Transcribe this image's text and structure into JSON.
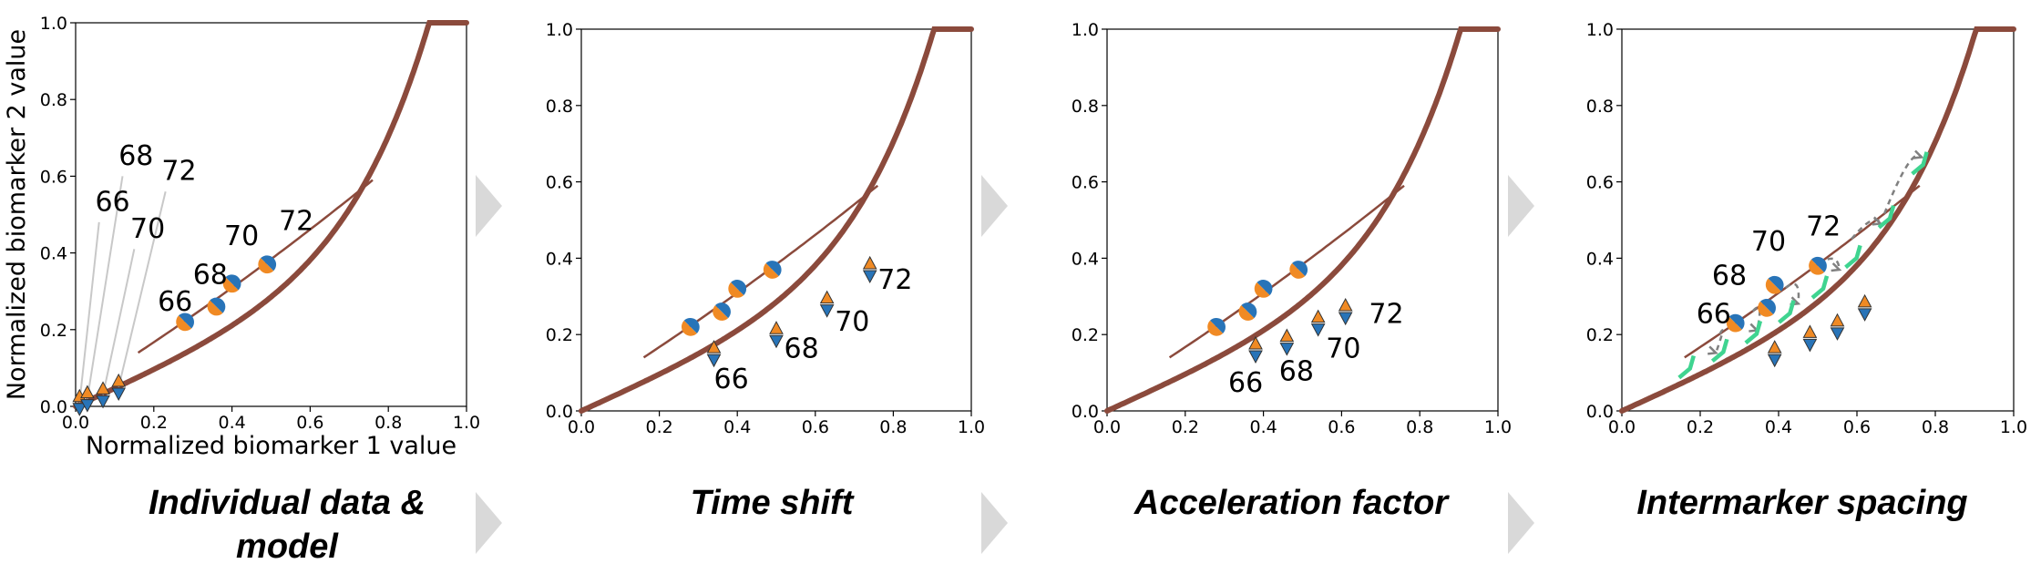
{
  "chart_data": [
    {
      "type": "scatter",
      "caption": "Individual data & model",
      "xlabel": "Normalized biomarker 1 value",
      "ylabel": "Normalized biomarker 2 value",
      "xlim": [
        0,
        1
      ],
      "ylim": [
        0,
        1
      ],
      "xticks": [
        "0.0",
        "0.2",
        "0.4",
        "0.6",
        "0.8",
        "1.0"
      ],
      "yticks": [
        "0.0",
        "0.2",
        "0.4",
        "0.6",
        "0.8",
        "1.0"
      ],
      "population_curve": "thick brown model curve from (0,0) to (1,1)",
      "individual_curve": {
        "x": [
          0.16,
          0.76
        ],
        "y": [
          0.14,
          0.59
        ]
      },
      "circles": {
        "ages": [
          "66",
          "68",
          "70",
          "72"
        ],
        "x": [
          0.28,
          0.36,
          0.4,
          0.49
        ],
        "y": [
          0.22,
          0.26,
          0.32,
          0.37
        ]
      },
      "triangles": {
        "ages": [
          "66",
          "68",
          "70",
          "72"
        ],
        "x": [
          0.01,
          0.03,
          0.07,
          0.11
        ],
        "y": [
          0.01,
          0.02,
          0.03,
          0.05
        ]
      },
      "circle_labels": [
        {
          "text": "66",
          "x": 0.21,
          "y": 0.25
        },
        {
          "text": "68",
          "x": 0.3,
          "y": 0.32
        },
        {
          "text": "70",
          "x": 0.38,
          "y": 0.42
        },
        {
          "text": "72",
          "x": 0.52,
          "y": 0.46
        }
      ],
      "triangle_labels": [
        {
          "text": "66",
          "x": 0.05,
          "y": 0.51
        },
        {
          "text": "68",
          "x": 0.11,
          "y": 0.63
        },
        {
          "text": "70",
          "x": 0.14,
          "y": 0.44
        },
        {
          "text": "72",
          "x": 0.22,
          "y": 0.59
        }
      ],
      "leader_lines": true,
      "green_segments": false,
      "dashed_arcs": false
    },
    {
      "type": "scatter",
      "caption": "Time shift",
      "xlabel": "",
      "ylabel": "",
      "xlim": [
        0,
        1
      ],
      "ylim": [
        0,
        1
      ],
      "xticks": [
        "0.0",
        "0.2",
        "0.4",
        "0.6",
        "0.8",
        "1.0"
      ],
      "yticks": [
        "0.0",
        "0.2",
        "0.4",
        "0.6",
        "0.8",
        "1.0"
      ],
      "population_curve": "thick brown model curve from (0,0) to (1,1)",
      "individual_curve": {
        "x": [
          0.16,
          0.76
        ],
        "y": [
          0.14,
          0.59
        ]
      },
      "circles": {
        "ages": [
          "66",
          "68",
          "70",
          "72"
        ],
        "x": [
          0.28,
          0.36,
          0.4,
          0.49
        ],
        "y": [
          0.22,
          0.26,
          0.32,
          0.37
        ]
      },
      "triangles": {
        "ages": [
          "66",
          "68",
          "70",
          "72"
        ],
        "x": [
          0.34,
          0.5,
          0.63,
          0.74
        ],
        "y": [
          0.15,
          0.2,
          0.28,
          0.37
        ]
      },
      "circle_labels": [],
      "triangle_labels": [
        {
          "text": "66",
          "x": 0.34,
          "y": 0.06
        },
        {
          "text": "68",
          "x": 0.52,
          "y": 0.14
        },
        {
          "text": "70",
          "x": 0.65,
          "y": 0.21
        },
        {
          "text": "72",
          "x": 0.76,
          "y": 0.32
        }
      ],
      "leader_lines": false,
      "green_segments": false,
      "dashed_arcs": false
    },
    {
      "type": "scatter",
      "caption": "Acceleration factor",
      "xlabel": "",
      "ylabel": "",
      "xlim": [
        0,
        1
      ],
      "ylim": [
        0,
        1
      ],
      "xticks": [
        "0.0",
        "0.2",
        "0.4",
        "0.6",
        "0.8",
        "1.0"
      ],
      "yticks": [
        "0.0",
        "0.2",
        "0.4",
        "0.6",
        "0.8",
        "1.0"
      ],
      "population_curve": "thick brown model curve from (0,0) to (1,1)",
      "individual_curve": {
        "x": [
          0.16,
          0.76
        ],
        "y": [
          0.14,
          0.59
        ]
      },
      "circles": {
        "ages": [
          "66",
          "68",
          "70",
          "72"
        ],
        "x": [
          0.28,
          0.36,
          0.4,
          0.49
        ],
        "y": [
          0.22,
          0.26,
          0.32,
          0.37
        ]
      },
      "triangles": {
        "ages": [
          "66",
          "68",
          "70",
          "72"
        ],
        "x": [
          0.38,
          0.46,
          0.54,
          0.61
        ],
        "y": [
          0.16,
          0.18,
          0.23,
          0.26
        ]
      },
      "circle_labels": [],
      "triangle_labels": [
        {
          "text": "66",
          "x": 0.31,
          "y": 0.05
        },
        {
          "text": "68",
          "x": 0.44,
          "y": 0.08
        },
        {
          "text": "70",
          "x": 0.56,
          "y": 0.14
        },
        {
          "text": "72",
          "x": 0.67,
          "y": 0.23
        }
      ],
      "leader_lines": false,
      "green_segments": false,
      "dashed_arcs": false
    },
    {
      "type": "scatter",
      "caption": "Intermarker spacing",
      "xlabel": "",
      "ylabel": "",
      "xlim": [
        0,
        1
      ],
      "ylim": [
        0,
        1
      ],
      "xticks": [
        "0.0",
        "0.2",
        "0.4",
        "0.6",
        "0.8",
        "1.0"
      ],
      "yticks": [
        "0.0",
        "0.2",
        "0.4",
        "0.6",
        "0.8",
        "1.0"
      ],
      "population_curve": "thick brown model curve from (0,0) to (1,1)",
      "individual_curve": {
        "x": [
          0.16,
          0.76
        ],
        "y": [
          0.14,
          0.59
        ]
      },
      "circles": {
        "ages": [
          "66",
          "68",
          "70",
          "72"
        ],
        "x": [
          0.29,
          0.37,
          0.39,
          0.5
        ],
        "y": [
          0.23,
          0.27,
          0.33,
          0.38
        ]
      },
      "triangles": {
        "ages": [
          "66",
          "68",
          "70",
          "72"
        ],
        "x": [
          0.39,
          0.48,
          0.55,
          0.62
        ],
        "y": [
          0.15,
          0.19,
          0.22,
          0.27
        ]
      },
      "circle_labels": [
        {
          "text": "66",
          "x": 0.19,
          "y": 0.23
        },
        {
          "text": "68",
          "x": 0.23,
          "y": 0.33
        },
        {
          "text": "70",
          "x": 0.33,
          "y": 0.42
        },
        {
          "text": "72",
          "x": 0.47,
          "y": 0.46
        }
      ],
      "triangle_labels": [],
      "leader_lines": false,
      "green_segments": true,
      "dashed_arcs": true
    }
  ],
  "colors": {
    "curve": "#8b4a3c",
    "orange": "#f08a24",
    "blue": "#2874b8",
    "green": "#3fd490",
    "dashed": "#808080",
    "chevron": "#d9d9d9",
    "axis": "#000000"
  }
}
